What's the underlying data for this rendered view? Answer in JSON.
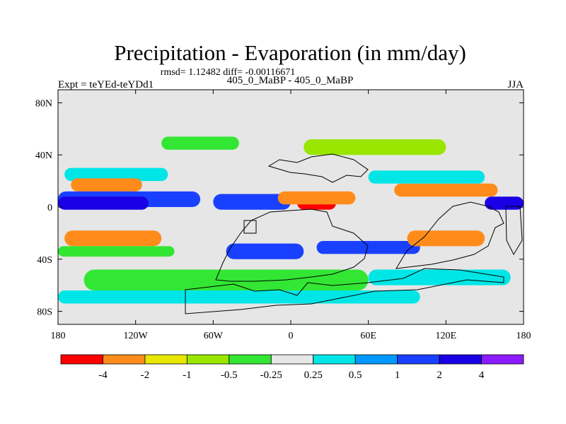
{
  "chart_data": {
    "type": "heatmap",
    "title": "Precipitation - Evaporation (in mm/day)",
    "stats_text": "rmsd= 1.12482 diff= -0.00116671",
    "left_label": "Expt = teYEd-teYDd1",
    "center_label": "405_0_MaBP - 405_0_MaBP",
    "right_label": "JJA",
    "x_range": [
      -180,
      180
    ],
    "y_range": [
      -90,
      90
    ],
    "x_ticks": [
      {
        "value": -180,
        "label": "180"
      },
      {
        "value": -120,
        "label": "120W"
      },
      {
        "value": -60,
        "label": "60W"
      },
      {
        "value": 0,
        "label": "0"
      },
      {
        "value": 60,
        "label": "60E"
      },
      {
        "value": 120,
        "label": "120E"
      },
      {
        "value": 180,
        "label": "180"
      }
    ],
    "y_ticks": [
      {
        "value": 80,
        "label": "80N"
      },
      {
        "value": 40,
        "label": "40N"
      },
      {
        "value": 0,
        "label": "0"
      },
      {
        "value": -40,
        "label": "40S"
      },
      {
        "value": -80,
        "label": "80S"
      }
    ],
    "colorbar": {
      "labels": [
        "-4",
        "-2",
        "-1",
        "-0.5",
        "-0.25",
        "0.25",
        "0.5",
        "1",
        "2",
        "4"
      ],
      "colors": [
        "#ff0000",
        "#ff8c1a",
        "#e6e600",
        "#99e600",
        "#33e633",
        "#e6e6e6",
        "#00e6e6",
        "#0099ff",
        "#1a40ff",
        "#1a00e6",
        "#8c1aff"
      ]
    },
    "regions": [
      {
        "name": "arctic-zero",
        "level": 5,
        "lon": [
          -180,
          180
        ],
        "lat": [
          60,
          90
        ]
      },
      {
        "name": "nh-midlat-band",
        "level": 4,
        "lon": [
          -100,
          -40
        ],
        "lat": [
          44,
          54
        ]
      },
      {
        "name": "asia-north-band",
        "level": 3,
        "lon": [
          10,
          120
        ],
        "lat": [
          40,
          52
        ]
      },
      {
        "name": "pacific-north-cyan",
        "level": 6,
        "lon": [
          -175,
          -95
        ],
        "lat": [
          20,
          30
        ]
      },
      {
        "name": "pacific-north-orange",
        "level": 1,
        "lon": [
          -170,
          -115
        ],
        "lat": [
          12,
          22
        ]
      },
      {
        "name": "pacific-itcz-blue",
        "level": 8,
        "lon": [
          -180,
          -70
        ],
        "lat": [
          0,
          12
        ]
      },
      {
        "name": "pacific-equator-deepblue",
        "level": 9,
        "lon": [
          -180,
          -110
        ],
        "lat": [
          -2,
          8
        ]
      },
      {
        "name": "atlantic-itcz-blue",
        "level": 8,
        "lon": [
          -60,
          0
        ],
        "lat": [
          -2,
          10
        ]
      },
      {
        "name": "africa-red",
        "level": 0,
        "lon": [
          5,
          35
        ],
        "lat": [
          -2,
          8
        ]
      },
      {
        "name": "africa-orange",
        "level": 1,
        "lon": [
          -10,
          50
        ],
        "lat": [
          2,
          12
        ]
      },
      {
        "name": "indian-orange",
        "level": 1,
        "lon": [
          80,
          160
        ],
        "lat": [
          8,
          18
        ]
      },
      {
        "name": "indian-cyan",
        "level": 6,
        "lon": [
          60,
          150
        ],
        "lat": [
          18,
          28
        ]
      },
      {
        "name": "westpac-deepblue",
        "level": 9,
        "lon": [
          150,
          180
        ],
        "lat": [
          -2,
          8
        ]
      },
      {
        "name": "south-pacific-orange",
        "level": 1,
        "lon": [
          -175,
          -100
        ],
        "lat": [
          -30,
          -18
        ]
      },
      {
        "name": "south-pacific-green",
        "level": 4,
        "lon": [
          -180,
          -90
        ],
        "lat": [
          -38,
          -30
        ]
      },
      {
        "name": "south-atlantic-blue",
        "level": 8,
        "lon": [
          -50,
          10
        ],
        "lat": [
          -40,
          -28
        ]
      },
      {
        "name": "south-indian-blue",
        "level": 8,
        "lon": [
          20,
          100
        ],
        "lat": [
          -36,
          -26
        ]
      },
      {
        "name": "south-indian-orange",
        "level": 1,
        "lon": [
          90,
          150
        ],
        "lat": [
          -30,
          -18
        ]
      },
      {
        "name": "southern-ocean-green",
        "level": 4,
        "lon": [
          -160,
          60
        ],
        "lat": [
          -64,
          -48
        ]
      },
      {
        "name": "southern-ocean-cyan",
        "level": 6,
        "lon": [
          -180,
          100
        ],
        "lat": [
          -74,
          -64
        ]
      },
      {
        "name": "southern-ocean-cyan-east",
        "level": 6,
        "lon": [
          60,
          170
        ],
        "lat": [
          -60,
          -48
        ]
      }
    ]
  }
}
